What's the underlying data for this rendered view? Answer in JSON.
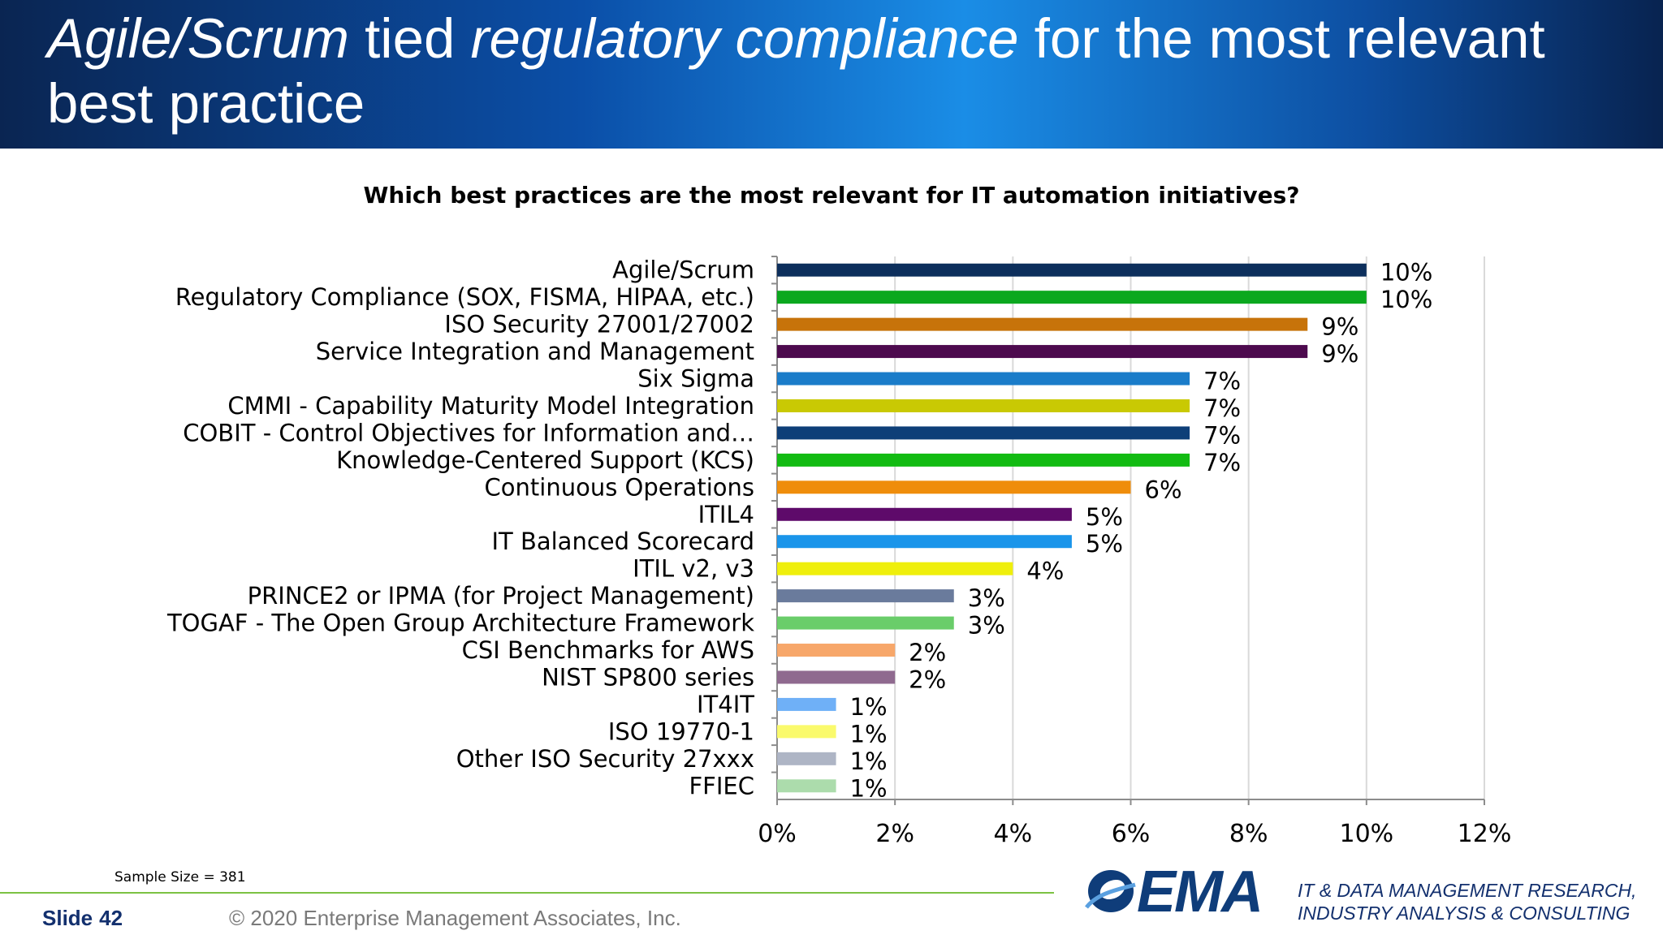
{
  "header": {
    "title_part1": "Agile/Scrum",
    "title_part2": " tied ",
    "title_part3": "regulatory compliance",
    "title_part4": " for the most relevant best practice"
  },
  "chart_data": {
    "type": "bar",
    "orientation": "horizontal",
    "title": "Which best practices are the most relevant for IT automation initiatives?",
    "categories": [
      "Agile/Scrum",
      "Regulatory Compliance (SOX, FISMA, HIPAA, etc.)",
      "ISO Security 27001/27002",
      "Service Integration and Management",
      "Six Sigma",
      "CMMI - Capability Maturity Model Integration",
      "COBIT - Control Objectives for Information and…",
      "Knowledge-Centered Support (KCS)",
      "Continuous Operations",
      "ITIL4",
      "IT Balanced Scorecard",
      "ITIL v2, v3",
      "PRINCE2 or IPMA (for Project Management)",
      "TOGAF - The Open Group Architecture Framework",
      "CSI Benchmarks for AWS",
      "NIST SP800 series",
      "IT4IT",
      "ISO 19770-1",
      "Other ISO Security 27xxx",
      "FFIEC"
    ],
    "values": [
      10,
      10,
      9,
      9,
      7,
      7,
      7,
      7,
      6,
      5,
      5,
      4,
      3,
      3,
      2,
      2,
      1,
      1,
      1,
      1
    ],
    "value_labels": [
      "10%",
      "10%",
      "9%",
      "9%",
      "7%",
      "7%",
      "7%",
      "7%",
      "6%",
      "5%",
      "5%",
      "4%",
      "3%",
      "3%",
      "2%",
      "2%",
      "1%",
      "1%",
      "1%",
      "1%"
    ],
    "colors": [
      "#0d2f5c",
      "#0ba81e",
      "#c7730a",
      "#4d0a4e",
      "#1a7cc9",
      "#c9c903",
      "#0e3f78",
      "#12bb12",
      "#ef8d0b",
      "#5e0a6a",
      "#1a95ea",
      "#efef0c",
      "#6a7b9c",
      "#6acd6a",
      "#f7a76a",
      "#8f6a8f",
      "#6fb0f7",
      "#fafa6c",
      "#aeb5c5",
      "#acdcac"
    ],
    "xlim": [
      0,
      12
    ],
    "xticks": [
      0,
      2,
      4,
      6,
      8,
      10,
      12
    ],
    "xtick_labels": [
      "0%",
      "2%",
      "4%",
      "6%",
      "8%",
      "10%",
      "12%"
    ],
    "grid": true,
    "legend": "none"
  },
  "footer": {
    "sample_size": "Sample Size = 381",
    "slide_label": "Slide",
    "slide_number": "42",
    "copyright": "© 2020 Enterprise Management Associates, Inc.",
    "logo_text": "EMA",
    "tagline_line1": "IT & DATA MANAGEMENT RESEARCH,",
    "tagline_line2": "INDUSTRY ANALYSIS & CONSULTING"
  }
}
